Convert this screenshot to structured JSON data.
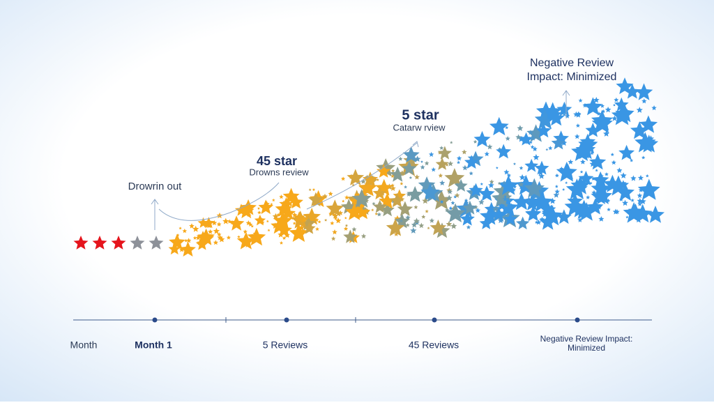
{
  "annotations": [
    {
      "title": "Drowrin out"
    },
    {
      "title": "45 star",
      "subtitle": "Drowns review"
    },
    {
      "title": "5 star",
      "subtitle": "Catarw rview"
    },
    {
      "lines": [
        "Negative Review",
        "Impact: Minimized"
      ]
    }
  ],
  "timeline": {
    "labels": [
      "Month",
      "Month 1",
      "5 Reviews",
      "45 Reviews"
    ],
    "last": [
      "Negative Review Impact:",
      "Minimized"
    ]
  }
}
